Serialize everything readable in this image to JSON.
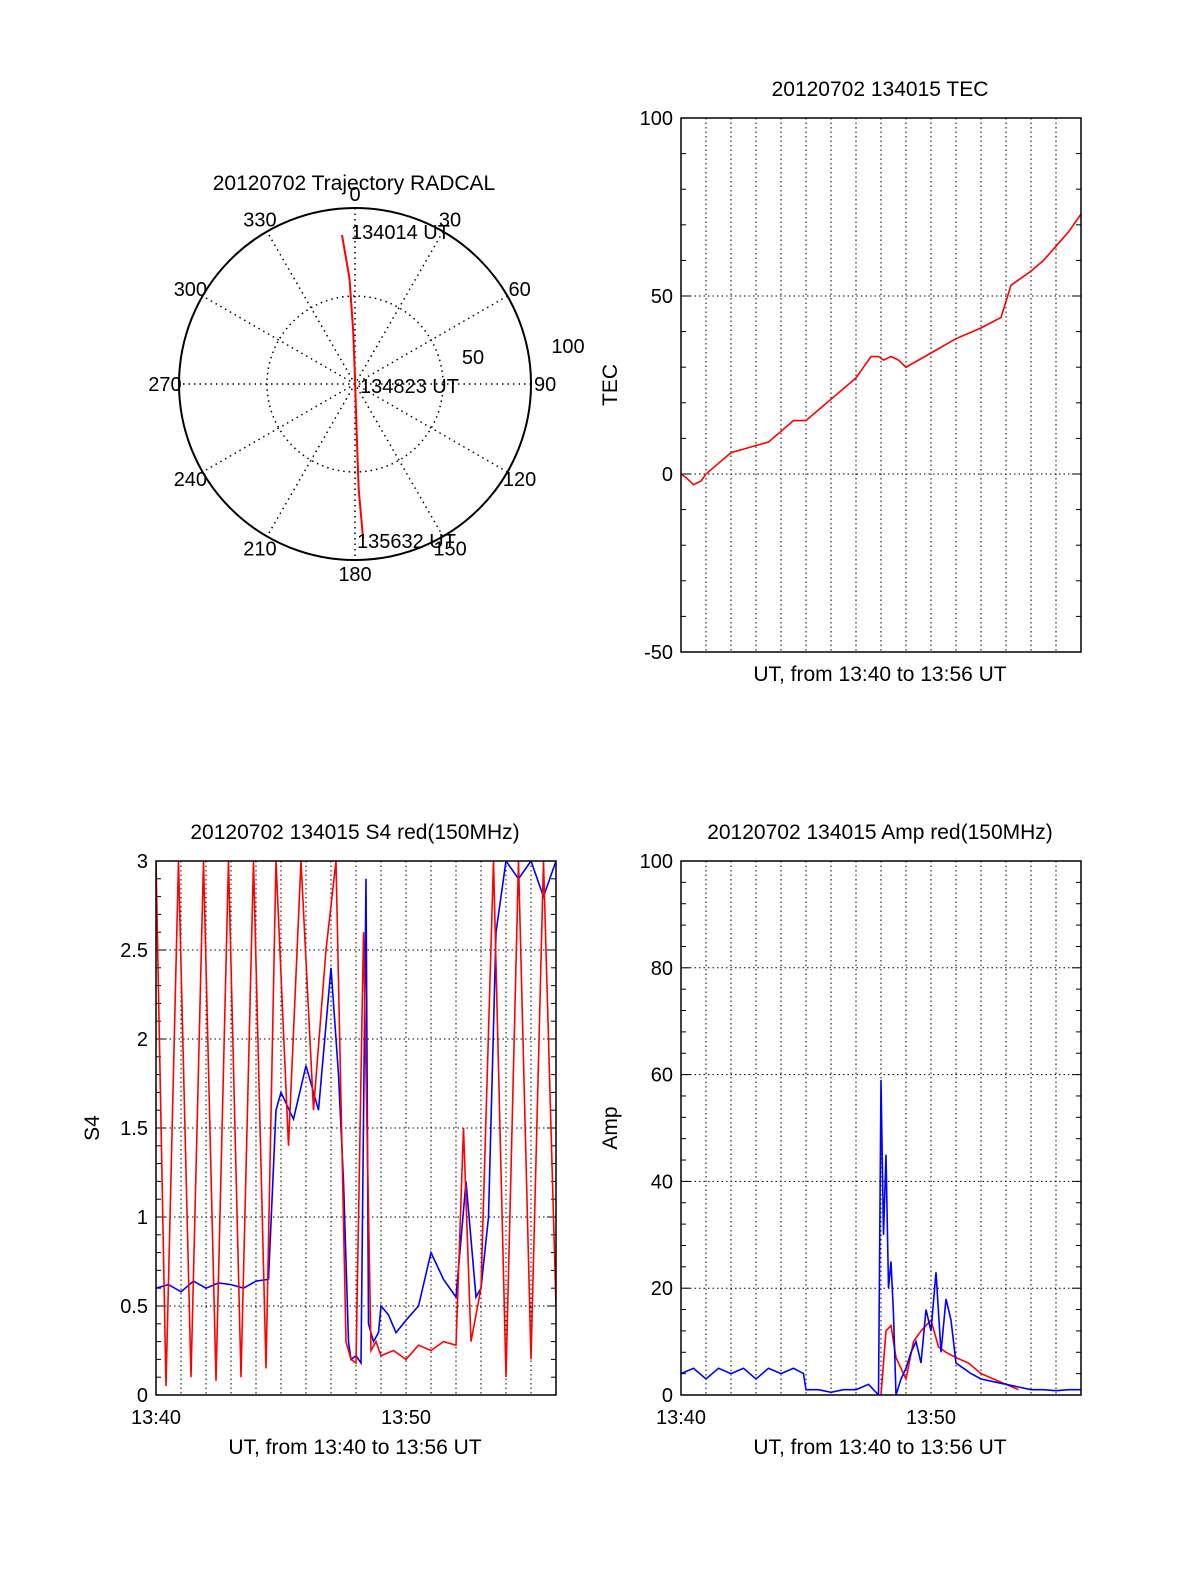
{
  "chart_data": [
    {
      "type": "polar",
      "title": "20120702 Trajectory RADCAL",
      "angle_labels": [
        "0",
        "30",
        "60",
        "90",
        "120",
        "150",
        "180",
        "210",
        "240",
        "270",
        "300",
        "330"
      ],
      "radial_labels": [
        "50",
        "100"
      ],
      "rlim": [
        0,
        100
      ],
      "grid": true,
      "annotations": [
        "134014 UT",
        "134823 UT",
        "135632 UT"
      ],
      "series": [
        {
          "color": "#ff0000",
          "points": [
            [
              355,
              85
            ],
            [
              357,
              60
            ],
            [
              358,
              30
            ],
            [
              0,
              3
            ],
            [
              178,
              30
            ],
            [
              178,
              60
            ],
            [
              177,
              88
            ]
          ]
        }
      ]
    },
    {
      "type": "line",
      "title": "20120702 134015 TEC",
      "xlabel": "UT, from 13:40 to 13:56 UT",
      "ylabel": "TEC",
      "xlim": [
        0,
        16
      ],
      "ylim": [
        -50,
        100
      ],
      "yticks": [
        "-50",
        "0",
        "50",
        "100"
      ],
      "grid": true,
      "series": [
        {
          "color": "#ff0000",
          "x": [
            0,
            0.2,
            0.5,
            0.8,
            1.0,
            1.5,
            2.0,
            2.5,
            3.0,
            3.5,
            4.0,
            4.5,
            5.0,
            5.5,
            6.0,
            6.5,
            7.0,
            7.3,
            7.6,
            7.9,
            8.1,
            8.4,
            8.7,
            9.0,
            10.0,
            11.0,
            12.0,
            12.8,
            13.2,
            13.6,
            14.0,
            14.5,
            15.0,
            15.5,
            16.0
          ],
          "y": [
            0,
            -1,
            -3,
            -2,
            0,
            3,
            6,
            7,
            8,
            9,
            12,
            15,
            15,
            18,
            21,
            24,
            27,
            30,
            33,
            33,
            32,
            33,
            32,
            30,
            34,
            38,
            41,
            44,
            53,
            55,
            57,
            60,
            64,
            68,
            73
          ]
        }
      ]
    },
    {
      "type": "line",
      "title": "20120702 134015 S4 red(150MHz)",
      "xlabel": "UT, from 13:40 to 13:56 UT",
      "ylabel": "S4",
      "xlim": [
        0,
        16
      ],
      "ylim": [
        0,
        3
      ],
      "xticks": [
        "13:40",
        "13:50"
      ],
      "yticks": [
        "0",
        "0.5",
        "1",
        "1.5",
        "2",
        "2.5",
        "3"
      ],
      "grid": true,
      "series": [
        {
          "color": "#0000ff",
          "x": [
            0,
            0.5,
            1.0,
            1.5,
            2.0,
            2.5,
            3.0,
            3.5,
            4.0,
            4.5,
            4.8,
            5.0,
            5.5,
            6.0,
            6.5,
            7.0,
            7.3,
            7.5,
            7.7,
            7.8,
            8.0,
            8.2,
            8.4,
            8.5,
            8.7,
            8.9,
            9.0,
            9.3,
            9.6,
            10.0,
            10.5,
            11.0,
            11.5,
            12.0,
            12.4,
            12.8,
            13.0,
            13.3,
            13.6,
            14.0,
            14.5,
            15.0,
            15.5,
            16.0
          ],
          "y": [
            0.6,
            0.62,
            0.58,
            0.64,
            0.6,
            0.63,
            0.62,
            0.6,
            0.64,
            0.65,
            1.6,
            1.7,
            1.55,
            1.85,
            1.6,
            2.4,
            1.8,
            1.2,
            0.3,
            0.2,
            0.22,
            0.18,
            2.9,
            0.4,
            0.3,
            0.35,
            0.5,
            0.45,
            0.35,
            0.42,
            0.5,
            0.8,
            0.65,
            0.55,
            1.2,
            0.55,
            0.6,
            1.0,
            2.6,
            3.0,
            2.9,
            3.0,
            2.8,
            3.0
          ]
        },
        {
          "color": "#ff0000",
          "x": [
            0,
            0.4,
            0.9,
            1.4,
            1.9,
            2.4,
            2.9,
            3.4,
            3.9,
            4.4,
            4.8,
            5.3,
            5.8,
            6.3,
            6.8,
            7.2,
            7.6,
            7.8,
            8.0,
            8.3,
            8.6,
            8.8,
            9.0,
            9.5,
            10.0,
            10.5,
            11.0,
            11.5,
            12.0,
            12.3,
            12.6,
            13.0,
            13.5,
            14.0,
            14.5,
            15.0,
            15.5,
            16.0
          ],
          "y": [
            3.0,
            0.05,
            3.0,
            0.1,
            3.0,
            0.08,
            3.0,
            0.1,
            3.0,
            0.15,
            3.0,
            1.4,
            3.0,
            1.6,
            2.5,
            3.0,
            0.3,
            0.2,
            0.18,
            2.6,
            0.25,
            0.3,
            0.22,
            0.25,
            0.2,
            0.28,
            0.25,
            0.3,
            0.28,
            1.5,
            0.3,
            0.6,
            3.0,
            0.1,
            3.0,
            0.2,
            3.0,
            0.5
          ]
        }
      ]
    },
    {
      "type": "line",
      "title": "20120702 134015 Amp red(150MHz)",
      "xlabel": "UT, from 13:40 to 13:56 UT",
      "ylabel": "Amp",
      "xlim": [
        0,
        16
      ],
      "ylim": [
        0,
        100
      ],
      "xticks": [
        "13:40",
        "13:50"
      ],
      "yticks": [
        "0",
        "20",
        "40",
        "60",
        "80",
        "100"
      ],
      "grid": true,
      "series": [
        {
          "color": "#ff0000",
          "x": [
            8.0,
            8.2,
            8.4,
            8.6,
            9.0,
            9.3,
            9.6,
            10.0,
            10.3,
            10.6,
            11.0,
            11.5,
            12.0,
            12.5,
            13.0,
            13.5
          ],
          "y": [
            0,
            12,
            13,
            7,
            3,
            10,
            12,
            14,
            9,
            8,
            7,
            6,
            4,
            3,
            2,
            1
          ]
        },
        {
          "color": "#0000ff",
          "x": [
            0,
            0.5,
            1.0,
            1.5,
            2.0,
            2.5,
            3.0,
            3.5,
            4.0,
            4.5,
            4.9,
            5.0,
            5.5,
            6.0,
            6.5,
            7.0,
            7.5,
            7.9,
            8.0,
            8.1,
            8.2,
            8.3,
            8.4,
            8.5,
            8.6,
            8.8,
            9.0,
            9.2,
            9.4,
            9.6,
            9.8,
            10.0,
            10.2,
            10.4,
            10.6,
            10.8,
            11.0,
            11.3,
            11.6,
            12.0,
            12.5,
            13.0,
            13.5,
            14.0,
            14.5,
            15.0,
            15.5,
            16.0
          ],
          "y": [
            4,
            5,
            3,
            5,
            4,
            5,
            3,
            5,
            4,
            5,
            4,
            1,
            1,
            0.5,
            1,
            1,
            2,
            0,
            59,
            30,
            45,
            20,
            25,
            15,
            0,
            3,
            5,
            8,
            10,
            6,
            16,
            12,
            23,
            8,
            18,
            14,
            6,
            5,
            4,
            3,
            2.5,
            2,
            1.5,
            1,
            1,
            0.8,
            1,
            1
          ]
        }
      ]
    }
  ]
}
